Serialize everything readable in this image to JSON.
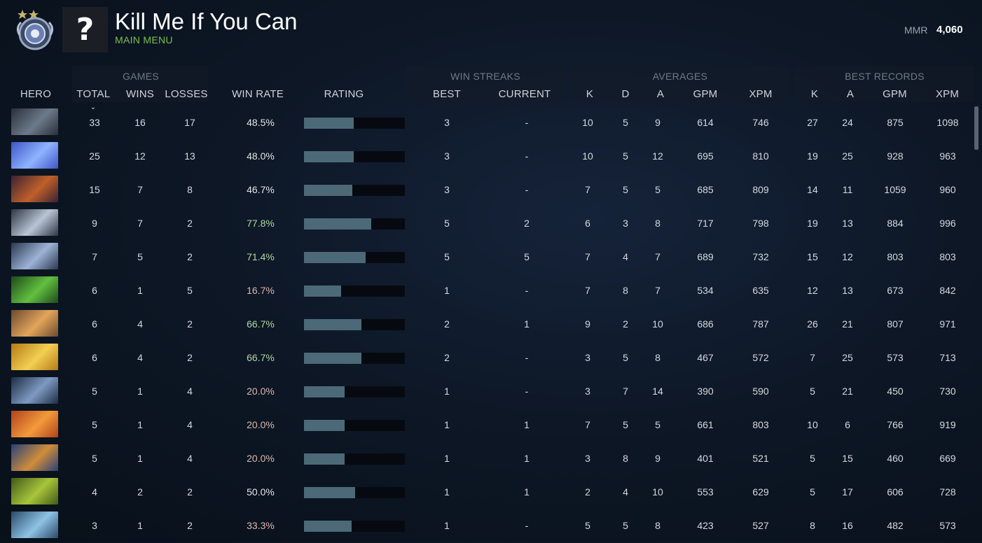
{
  "header": {
    "player_name": "Kill Me If You Can",
    "subtitle": "MAIN MENU",
    "mmr_label": "MMR",
    "mmr_value": "4,060",
    "avatar_placeholder": "?",
    "rank_medal_icon": "rank-medal-icon"
  },
  "groups": {
    "games": "GAMES",
    "win_streaks": "WIN STREAKS",
    "averages": "AVERAGES",
    "best_records": "BEST RECORDS"
  },
  "columns": {
    "hero": "HERO",
    "total": "TOTAL",
    "wins": "WINS",
    "losses": "LOSSES",
    "win_rate": "WIN RATE",
    "rating": "RATING",
    "best": "BEST",
    "current": "CURRENT",
    "avg_k": "K",
    "avg_d": "D",
    "avg_a": "A",
    "avg_gpm": "GPM",
    "avg_xpm": "XPM",
    "best_k": "K",
    "best_a": "A",
    "best_gpm": "GPM",
    "best_xpm": "XPM"
  },
  "sort_icon": "chevron-down-icon",
  "rows": [
    {
      "hero_icon": "hero-portrait-1",
      "colors": [
        "#2a2f38",
        "#6b7a8a"
      ],
      "total": "33",
      "wins": "16",
      "losses": "17",
      "win_rate": "48.5%",
      "rating": 0.49,
      "tone": "mid",
      "best": "3",
      "current": "-",
      "k": "10",
      "d": "5",
      "a": "9",
      "gpm": "614",
      "xpm": "746",
      "bk": "27",
      "ba": "24",
      "bgpm": "875",
      "bxpm": "1098"
    },
    {
      "hero_icon": "hero-portrait-2",
      "colors": [
        "#3f55c7",
        "#8fb4ff"
      ],
      "total": "25",
      "wins": "12",
      "losses": "13",
      "win_rate": "48.0%",
      "rating": 0.49,
      "tone": "mid",
      "best": "3",
      "current": "-",
      "k": "10",
      "d": "5",
      "a": "12",
      "gpm": "695",
      "xpm": "810",
      "bk": "19",
      "ba": "25",
      "bgpm": "928",
      "bxpm": "963"
    },
    {
      "hero_icon": "hero-portrait-3",
      "colors": [
        "#3a2232",
        "#c0602a"
      ],
      "total": "15",
      "wins": "7",
      "losses": "8",
      "win_rate": "46.7%",
      "rating": 0.48,
      "tone": "mid",
      "best": "3",
      "current": "-",
      "k": "7",
      "d": "5",
      "a": "5",
      "gpm": "685",
      "xpm": "809",
      "bk": "14",
      "ba": "11",
      "bgpm": "1059",
      "bxpm": "960"
    },
    {
      "hero_icon": "hero-portrait-4",
      "colors": [
        "#2c3644",
        "#b9c4d4"
      ],
      "total": "9",
      "wins": "7",
      "losses": "2",
      "win_rate": "77.8%",
      "rating": 0.67,
      "tone": "good",
      "best": "5",
      "current": "2",
      "k": "6",
      "d": "3",
      "a": "8",
      "gpm": "717",
      "xpm": "798",
      "bk": "19",
      "ba": "13",
      "bgpm": "884",
      "bxpm": "996"
    },
    {
      "hero_icon": "hero-portrait-5",
      "colors": [
        "#2b3850",
        "#9db3d6"
      ],
      "total": "7",
      "wins": "5",
      "losses": "2",
      "win_rate": "71.4%",
      "rating": 0.61,
      "tone": "good",
      "best": "5",
      "current": "5",
      "k": "7",
      "d": "4",
      "a": "7",
      "gpm": "689",
      "xpm": "732",
      "bk": "15",
      "ba": "12",
      "bgpm": "803",
      "bxpm": "803"
    },
    {
      "hero_icon": "hero-portrait-6",
      "colors": [
        "#1d4a1c",
        "#62c03e"
      ],
      "total": "6",
      "wins": "1",
      "losses": "5",
      "win_rate": "16.7%",
      "rating": 0.37,
      "tone": "bad",
      "best": "1",
      "current": "-",
      "k": "7",
      "d": "8",
      "a": "7",
      "gpm": "534",
      "xpm": "635",
      "bk": "12",
      "ba": "13",
      "bgpm": "673",
      "bxpm": "842"
    },
    {
      "hero_icon": "hero-portrait-7",
      "colors": [
        "#6b4a30",
        "#e3a55a"
      ],
      "total": "6",
      "wins": "4",
      "losses": "2",
      "win_rate": "66.7%",
      "rating": 0.57,
      "tone": "good",
      "best": "2",
      "current": "1",
      "k": "9",
      "d": "2",
      "a": "10",
      "gpm": "686",
      "xpm": "787",
      "bk": "26",
      "ba": "21",
      "bgpm": "807",
      "bxpm": "971"
    },
    {
      "hero_icon": "hero-portrait-8",
      "colors": [
        "#b57a16",
        "#f3cf52"
      ],
      "total": "6",
      "wins": "4",
      "losses": "2",
      "win_rate": "66.7%",
      "rating": 0.57,
      "tone": "good",
      "best": "2",
      "current": "-",
      "k": "3",
      "d": "5",
      "a": "8",
      "gpm": "467",
      "xpm": "572",
      "bk": "7",
      "ba": "25",
      "bgpm": "573",
      "bxpm": "713"
    },
    {
      "hero_icon": "hero-portrait-9",
      "colors": [
        "#1d2c44",
        "#7e9ac2"
      ],
      "total": "5",
      "wins": "1",
      "losses": "4",
      "win_rate": "20.0%",
      "rating": 0.4,
      "tone": "bad",
      "best": "1",
      "current": "-",
      "k": "3",
      "d": "7",
      "a": "14",
      "gpm": "390",
      "xpm": "590",
      "bk": "5",
      "ba": "21",
      "bgpm": "450",
      "bxpm": "730"
    },
    {
      "hero_icon": "hero-portrait-10",
      "colors": [
        "#b0421c",
        "#f49a3a"
      ],
      "total": "5",
      "wins": "1",
      "losses": "4",
      "win_rate": "20.0%",
      "rating": 0.4,
      "tone": "bad",
      "best": "1",
      "current": "1",
      "k": "7",
      "d": "5",
      "a": "5",
      "gpm": "661",
      "xpm": "803",
      "bk": "10",
      "ba": "6",
      "bgpm": "766",
      "bxpm": "919"
    },
    {
      "hero_icon": "hero-portrait-11",
      "colors": [
        "#28407a",
        "#d08d3a"
      ],
      "total": "5",
      "wins": "1",
      "losses": "4",
      "win_rate": "20.0%",
      "rating": 0.4,
      "tone": "bad",
      "best": "1",
      "current": "1",
      "k": "3",
      "d": "8",
      "a": "9",
      "gpm": "401",
      "xpm": "521",
      "bk": "5",
      "ba": "15",
      "bgpm": "460",
      "bxpm": "669"
    },
    {
      "hero_icon": "hero-portrait-12",
      "colors": [
        "#405a16",
        "#a9c53a"
      ],
      "total": "4",
      "wins": "2",
      "losses": "2",
      "win_rate": "50.0%",
      "rating": 0.51,
      "tone": "mid",
      "best": "1",
      "current": "1",
      "k": "2",
      "d": "4",
      "a": "10",
      "gpm": "553",
      "xpm": "629",
      "bk": "5",
      "ba": "17",
      "bgpm": "606",
      "bxpm": "728"
    },
    {
      "hero_icon": "hero-portrait-13",
      "colors": [
        "#2a4a66",
        "#8ec3e6"
      ],
      "total": "3",
      "wins": "1",
      "losses": "2",
      "win_rate": "33.3%",
      "rating": 0.47,
      "tone": "bad",
      "best": "1",
      "current": "-",
      "k": "5",
      "d": "5",
      "a": "8",
      "gpm": "423",
      "xpm": "527",
      "bk": "8",
      "ba": "16",
      "bgpm": "482",
      "bxpm": "573"
    }
  ]
}
